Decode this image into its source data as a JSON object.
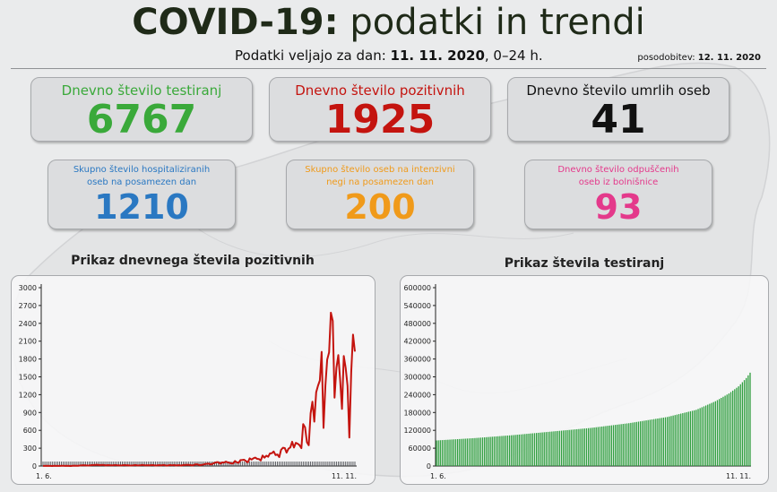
{
  "header": {
    "title_bold": "COVID-19:",
    "title_light": "podatki in trendi",
    "date_prefix": "Podatki veljajo za dan:",
    "date": "11. 11. 2020",
    "date_suffix": ", 0–24 h.",
    "update_label": "posodobitev:",
    "update_date": "12. 11. 2020"
  },
  "cards": {
    "tests": {
      "label": "Dnevno število testiranj",
      "value": "6767",
      "color": "#3aa93a"
    },
    "positive": {
      "label": "Dnevno število pozitivnih",
      "value": "1925",
      "color": "#c4140f"
    },
    "deaths": {
      "label": "Dnevno število umrlih oseb",
      "value": "41",
      "color": "#111111"
    },
    "hospital": {
      "label_1": "Skupno število hospitaliziranih",
      "label_2": "oseb na posamezen dan",
      "value": "1210",
      "color": "#2a78c2"
    },
    "icu": {
      "label_1": "Skupno število oseb na intenzivni",
      "label_2": "negi na posamezen dan",
      "value": "200",
      "color": "#f09a1a"
    },
    "discharged": {
      "label_1": "Dnevno število odpuščenih",
      "label_2": "oseb iz bolnišnice",
      "value": "93",
      "color": "#e4398b"
    }
  },
  "chart_data": [
    {
      "type": "line",
      "title": "Prikaz dnevnega števila pozitivnih",
      "color": "#c4140f",
      "x_start": "1. 6.",
      "x_end": "11. 11.",
      "ylim": [
        0,
        3000
      ],
      "y_ticks": [
        "0",
        "300",
        "600",
        "900",
        "1200",
        "1500",
        "1800",
        "2100",
        "2400",
        "2700",
        "3000"
      ],
      "values": [
        2,
        1,
        5,
        2,
        1,
        0,
        3,
        1,
        1,
        2,
        5,
        4,
        1,
        3,
        2,
        0,
        4,
        6,
        3,
        5,
        8,
        10,
        13,
        11,
        7,
        9,
        13,
        16,
        17,
        21,
        18,
        13,
        20,
        16,
        9,
        15,
        13,
        12,
        10,
        18,
        12,
        11,
        9,
        12,
        16,
        12,
        14,
        7,
        9,
        12,
        16,
        9,
        11,
        13,
        20,
        10,
        12,
        13,
        11,
        16,
        14,
        7,
        11,
        15,
        9,
        18,
        14,
        5,
        12,
        17,
        10,
        18,
        8,
        14,
        13,
        6,
        18,
        16,
        21,
        19,
        15,
        9,
        22,
        29,
        24,
        13,
        19,
        26,
        34,
        37,
        39,
        26,
        40,
        53,
        64,
        63,
        39,
        61,
        58,
        74,
        62,
        54,
        45,
        42,
        84,
        62,
        55,
        100,
        101,
        106,
        82,
        60,
        129,
        109,
        130,
        142,
        121,
        117,
        94,
        176,
        140,
        174,
        156,
        212,
        215,
        244,
        184,
        195,
        150,
        271,
        308,
        302,
        225,
        291,
        312,
        409,
        311,
        391,
        376,
        351,
        300,
        705,
        650,
        400,
        350,
        886,
        1081,
        746,
        1240,
        1350,
        1440,
        1920,
        640,
        1356,
        1791,
        1910,
        2580,
        2440,
        1150,
        1650,
        1865,
        1460,
        960,
        1850,
        1650,
        1350,
        480,
        1580,
        2210,
        1925
      ]
    },
    {
      "type": "bar",
      "title": "Prikaz števila testiranj",
      "color": "#2e9e3e",
      "x_start": "1. 6.",
      "x_end": "11. 11.",
      "ylim": [
        0,
        600000
      ],
      "y_ticks": [
        "0",
        "60000",
        "120000",
        "180000",
        "240000",
        "300000",
        "360000",
        "420000",
        "480000",
        "540000",
        "600000"
      ],
      "points": [
        [
          0,
          86000
        ],
        [
          20,
          94000
        ],
        [
          40,
          104000
        ],
        [
          60,
          116000
        ],
        [
          80,
          128000
        ],
        [
          100,
          144000
        ],
        [
          120,
          165000
        ],
        [
          135,
          189000
        ],
        [
          145,
          218000
        ],
        [
          152,
          244000
        ],
        [
          157,
          268000
        ],
        [
          161,
          296000
        ],
        [
          163,
          314000
        ]
      ]
    }
  ]
}
